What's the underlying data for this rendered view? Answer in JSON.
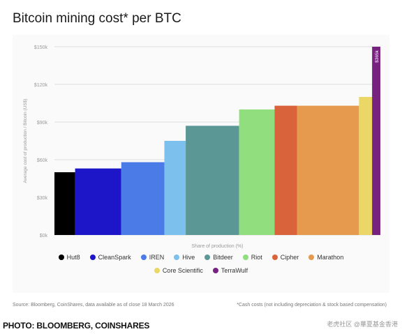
{
  "chart_data": {
    "type": "bar",
    "title": "Bitcoin mining cost* per BTC",
    "xlabel": "Share of production (%)",
    "ylabel": "Average cost of production / Bitcoin (US$)",
    "ylim": [
      0,
      150000
    ],
    "yticks": [
      0,
      30000,
      60000,
      90000,
      120000,
      150000
    ],
    "ytick_labels": [
      "$0k",
      "$30k",
      "$60k",
      "$90k",
      "$120k",
      "$150k"
    ],
    "grid": true,
    "legend_position": "bottom",
    "categories": [
      "Hut8",
      "CleanSpark",
      "IREN",
      "Hive",
      "Bitdeer",
      "Riot",
      "Cipher",
      "Marathon",
      "Core Scientific",
      "TerraWulf"
    ],
    "values": [
      50000,
      53000,
      58000,
      75000,
      87000,
      100000,
      103000,
      103000,
      110000,
      150000
    ],
    "share_of_production": [
      6,
      13.4,
      12.5,
      6.2,
      15.5,
      10.3,
      6.5,
      18,
      3.8,
      2.4
    ],
    "colors": [
      "#000000",
      "#1d16c9",
      "#4a7be6",
      "#7cc0ee",
      "#5b9795",
      "#90de7e",
      "#d9633a",
      "#e59a4d",
      "#ead765",
      "#77227f"
    ],
    "annotations": [
      {
        "series": "TerraWulf",
        "text": "$365k"
      }
    ]
  },
  "source": "Source: Bloomberg, CoinShares, data available as of close 18 March 2026",
  "footnote": "*Cash costs (not including depreciation & stock based compensation)",
  "credit": "PHOTO: BLOOMBERG, COINSHARES",
  "watermark": "老虎社区 @華夏基金香港"
}
